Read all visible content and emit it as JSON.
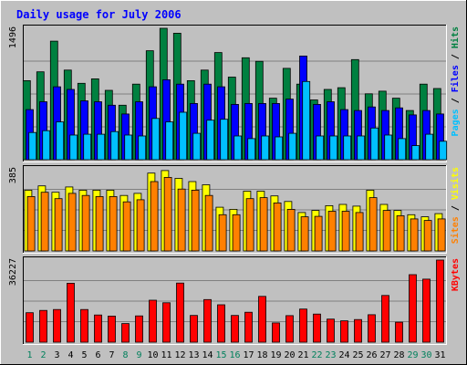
{
  "chart_data": {
    "type": "bar",
    "title": "Daily usage for July 2006",
    "categories": [
      "1",
      "2",
      "3",
      "4",
      "5",
      "6",
      "7",
      "8",
      "9",
      "10",
      "11",
      "12",
      "13",
      "14",
      "15",
      "16",
      "17",
      "18",
      "19",
      "20",
      "21",
      "22",
      "23",
      "24",
      "25",
      "26",
      "27",
      "28",
      "29",
      "30",
      "31"
    ],
    "weekend_days": [
      1,
      2,
      8,
      9,
      15,
      16,
      22,
      23,
      29,
      30
    ],
    "panels": [
      {
        "ymax_label": "1496",
        "ylim": [
          0,
          1496
        ],
        "legend": [
          {
            "text": "Pages",
            "color": "#00c0ff"
          },
          {
            "text": " / ",
            "color": "#000000"
          },
          {
            "text": "Files",
            "color": "#0000ff"
          },
          {
            "text": " / ",
            "color": "#000000"
          },
          {
            "text": "Hits",
            "color": "#008040"
          }
        ],
        "series": [
          {
            "name": "Hits",
            "color": "#008040",
            "values": [
              900,
              1000,
              1350,
              1020,
              870,
              920,
              790,
              620,
              860,
              1240,
              1496,
              1440,
              900,
              1020,
              1220,
              940,
              1160,
              1120,
              700,
              1040,
              860,
              680,
              800,
              820,
              1140,
              750,
              780,
              700,
              560,
              860,
              810
            ]
          },
          {
            "name": "Files",
            "color": "#0000ff",
            "values": [
              570,
              660,
              830,
              800,
              670,
              660,
              620,
              520,
              660,
              830,
              910,
              860,
              640,
              860,
              830,
              630,
              640,
              640,
              640,
              690,
              1180,
              630,
              660,
              570,
              560,
              600,
              560,
              590,
              510,
              560,
              520
            ]
          },
          {
            "name": "Pages",
            "color": "#00c0ff",
            "values": [
              310,
              330,
              430,
              280,
              290,
              290,
              320,
              280,
              270,
              470,
              430,
              540,
              300,
              450,
              460,
              270,
              240,
              270,
              260,
              300,
              890,
              270,
              270,
              270,
              270,
              360,
              280,
              240,
              160,
              290,
              210
            ]
          }
        ]
      },
      {
        "ymax_label": "385",
        "ylim": [
          0,
          385
        ],
        "legend": [
          {
            "text": "Sites",
            "color": "#ff8000"
          },
          {
            "text": " / ",
            "color": "#000000"
          },
          {
            "text": "Visits",
            "color": "#ffff00"
          }
        ],
        "series": [
          {
            "name": "Visits",
            "color": "#ffff00",
            "values": [
              285,
              305,
              275,
              300,
              285,
              285,
              285,
              260,
              270,
              365,
              377,
              340,
              325,
              310,
              205,
              195,
              280,
              280,
              258,
              232,
              180,
              190,
              212,
              218,
              210,
              285,
              218,
              190,
              170,
              160,
              175
            ]
          },
          {
            "name": "Sites",
            "color": "#ff8000",
            "values": [
              255,
              275,
              245,
              270,
              260,
              255,
              255,
              230,
              240,
              325,
              345,
              290,
              285,
              260,
              170,
              170,
              245,
              250,
              225,
              195,
              160,
              162,
              186,
              186,
              180,
              250,
              190,
              165,
              150,
              143,
              150
            ]
          }
        ]
      },
      {
        "ymax_label": "36227",
        "ylim": [
          0,
          36227
        ],
        "legend": [
          {
            "text": "KBytes",
            "color": "#ff0000"
          }
        ],
        "series": [
          {
            "name": "KBytes",
            "color": "#ff0000",
            "values": [
              13000,
              14000,
              14400,
              26000,
              14400,
              12000,
              11500,
              8200,
              11600,
              18500,
              17400,
              26100,
              11800,
              18800,
              16500,
              11800,
              13200,
              20200,
              8500,
              11700,
              14600,
              12400,
              10200,
              9400,
              10000,
              12100,
              20600,
              8800,
              29800,
              27800,
              36227
            ]
          }
        ]
      }
    ]
  }
}
